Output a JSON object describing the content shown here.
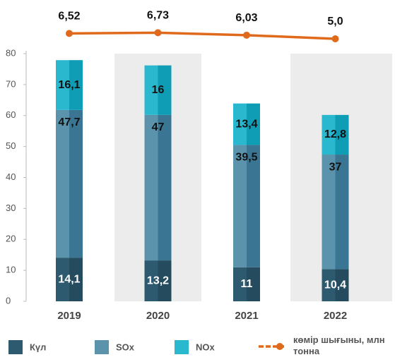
{
  "chart_data": {
    "type": "bar",
    "stacked": true,
    "categories": [
      "2019",
      "2020",
      "2021",
      "2022"
    ],
    "series": [
      {
        "name": "Күл",
        "color": "#2e5a70",
        "values": [
          14.1,
          13.2,
          11,
          10.4
        ],
        "value_labels": [
          "14,1",
          "13,2",
          "11",
          "10,4"
        ]
      },
      {
        "name": "SOx",
        "color": "#5b93ad",
        "values": [
          47.7,
          47,
          39.5,
          37
        ],
        "value_labels": [
          "47,7",
          "47",
          "39,5",
          "37"
        ]
      },
      {
        "name": "NOx",
        "color": "#2ab8cf",
        "values": [
          16.1,
          16,
          13.4,
          12.8
        ],
        "value_labels": [
          "16,1",
          "16",
          "13,4",
          "12,8"
        ]
      },
      {
        "name": "көмір шығыны, млн тонна",
        "type": "line",
        "axis": "y2",
        "color": "#e06a1c",
        "values": [
          6.52,
          6.73,
          6.03,
          5.0
        ],
        "value_labels": [
          "6,52",
          "6,73",
          "6,03",
          "5,0"
        ]
      }
    ],
    "ylim": [
      0,
      80
    ],
    "yticks": [
      0,
      10,
      20,
      30,
      40,
      50,
      60,
      70,
      80
    ],
    "y2lim": [
      -10,
      10
    ]
  }
}
